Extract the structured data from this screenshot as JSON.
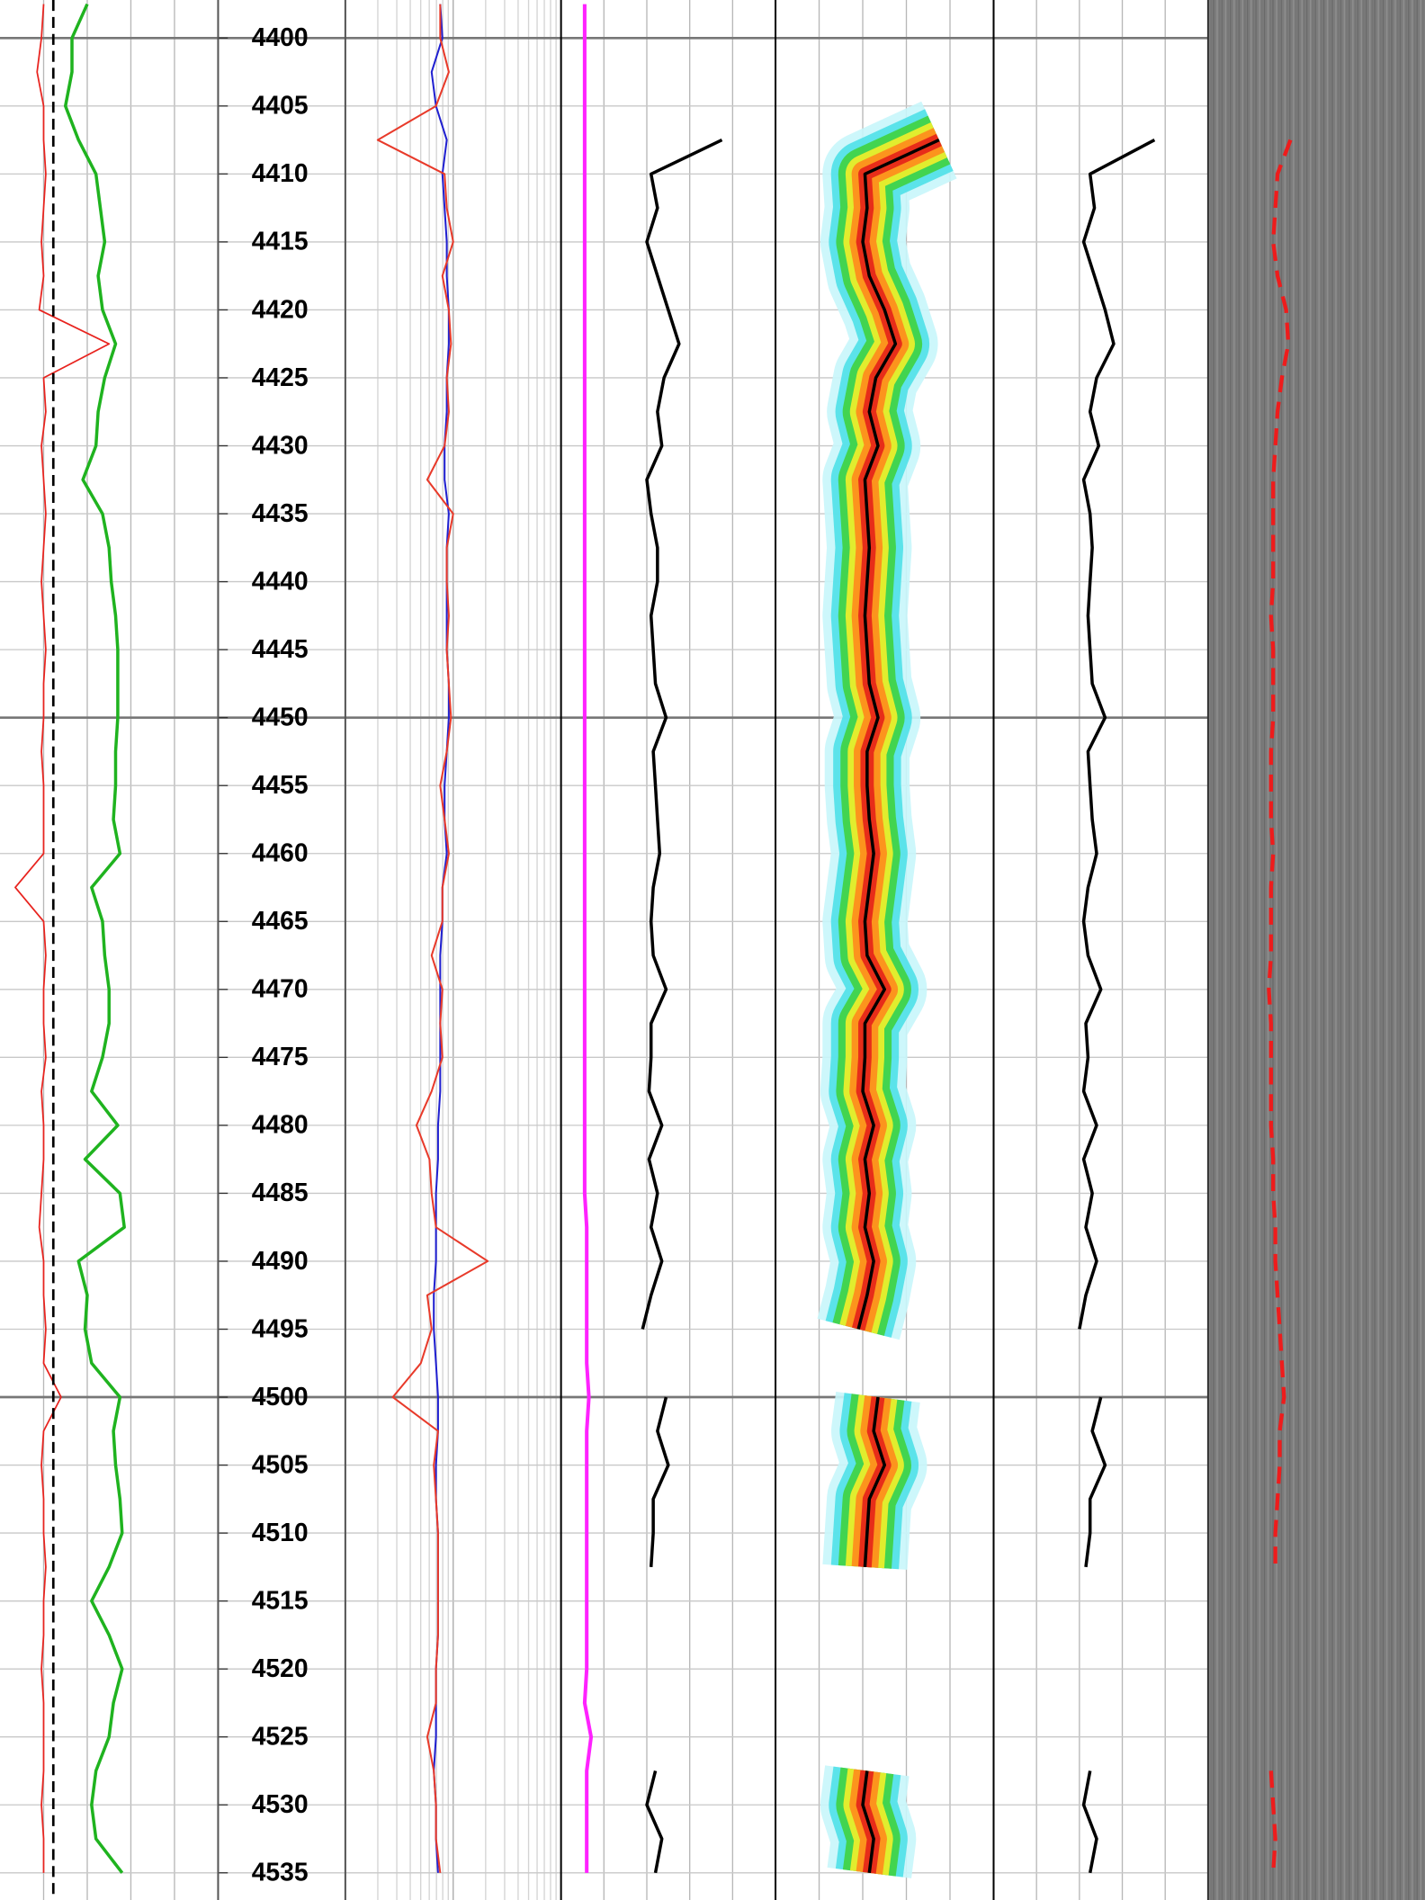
{
  "chart_data": {
    "type": "well-log",
    "ylim": [
      4397.2,
      4537.0
    ],
    "yticks": [
      4400,
      4405,
      4410,
      4415,
      4420,
      4425,
      4430,
      4435,
      4440,
      4445,
      4450,
      4455,
      4460,
      4465,
      4470,
      4475,
      4480,
      4485,
      4490,
      4495,
      4500,
      4505,
      4510,
      4515,
      4520,
      4525,
      4530,
      4535
    ],
    "grid": true,
    "depth": [
      4397.5,
      4400,
      4402.5,
      4405,
      4407.5,
      4410,
      4412.5,
      4415,
      4417.5,
      4420,
      4422.5,
      4425,
      4427.5,
      4430,
      4432.5,
      4435,
      4437.5,
      4440,
      4442.5,
      4445,
      4447.5,
      4450,
      4452.5,
      4455,
      4457.5,
      4460,
      4462.5,
      4465,
      4467.5,
      4470,
      4472.5,
      4475,
      4477.5,
      4480,
      4482.5,
      4485,
      4487.5,
      4490,
      4492.5,
      4495,
      4497.5,
      4500,
      4502.5,
      4505,
      4507.5,
      4510,
      4512.5,
      4515,
      4517.5,
      4520,
      4522.5,
      4525,
      4527.5,
      4530,
      4532.5,
      4535
    ],
    "tracks": [
      {
        "xlim": [
          0,
          1
        ],
        "series": [
          {
            "color": "#e8231e",
            "width": 1.3,
            "values": [
              0.2,
              0.19,
              0.17,
              0.2,
              0.2,
              0.21,
              0.2,
              0.19,
              0.2,
              0.18,
              0.5,
              0.2,
              0.21,
              0.19,
              0.2,
              0.21,
              0.2,
              0.19,
              0.2,
              0.21,
              0.2,
              0.2,
              0.19,
              0.2,
              0.2,
              0.2,
              0.07,
              0.2,
              0.21,
              0.2,
              0.2,
              0.21,
              0.19,
              0.2,
              0.2,
              0.19,
              0.18,
              0.2,
              0.2,
              0.21,
              0.2,
              0.28,
              0.2,
              0.19,
              0.2,
              0.2,
              0.21,
              0.2,
              0.2,
              0.19,
              0.2,
              0.2,
              0.2,
              0.19,
              0.2,
              0.2
            ]
          },
          {
            "color": "#1fb31f",
            "width": 2.6,
            "values": [
              0.4,
              0.33,
              0.33,
              0.3,
              0.36,
              0.44,
              0.46,
              0.48,
              0.45,
              0.47,
              0.53,
              0.48,
              0.45,
              0.44,
              0.38,
              0.47,
              0.5,
              0.51,
              0.53,
              0.54,
              0.54,
              0.54,
              0.53,
              0.53,
              0.52,
              0.55,
              0.42,
              0.47,
              0.48,
              0.5,
              0.5,
              0.47,
              0.42,
              0.54,
              0.39,
              0.55,
              0.57,
              0.36,
              0.4,
              0.39,
              0.42,
              0.55,
              0.52,
              0.53,
              0.55,
              0.56,
              0.5,
              0.42,
              0.5,
              0.56,
              0.52,
              0.5,
              0.44,
              0.42,
              0.44,
              0.56
            ]
          }
        ]
      },
      {
        "xlim": [
          0,
          1
        ],
        "log": true,
        "series": [
          {
            "color": "#2020d0",
            "width": 1.5,
            "values": [
              0.44,
              0.45,
              0.4,
              0.42,
              0.47,
              0.45,
              0.46,
              0.47,
              0.47,
              0.48,
              0.48,
              0.47,
              0.47,
              0.46,
              0.46,
              0.48,
              0.47,
              0.47,
              0.47,
              0.47,
              0.48,
              0.48,
              0.47,
              0.46,
              0.46,
              0.47,
              0.45,
              0.45,
              0.44,
              0.44,
              0.44,
              0.44,
              0.44,
              0.43,
              0.43,
              0.42,
              0.42,
              0.42,
              0.41,
              0.41,
              0.42,
              0.43,
              0.43,
              0.42,
              0.42,
              0.43,
              0.43,
              0.43,
              0.43,
              0.42,
              0.42,
              0.42,
              0.41,
              0.42,
              0.42,
              0.43
            ]
          },
          {
            "color": "#e83a2a",
            "width": 1.5,
            "values": [
              0.44,
              0.44,
              0.48,
              0.42,
              0.15,
              0.46,
              0.47,
              0.5,
              0.45,
              0.48,
              0.49,
              0.47,
              0.48,
              0.46,
              0.38,
              0.5,
              0.47,
              0.47,
              0.48,
              0.47,
              0.48,
              0.49,
              0.47,
              0.44,
              0.46,
              0.48,
              0.45,
              0.45,
              0.4,
              0.45,
              0.44,
              0.45,
              0.4,
              0.33,
              0.39,
              0.4,
              0.42,
              0.66,
              0.38,
              0.4,
              0.35,
              0.22,
              0.43,
              0.41,
              0.42,
              0.43,
              0.43,
              0.43,
              0.43,
              0.42,
              0.42,
              0.38,
              0.41,
              0.42,
              0.42,
              0.44
            ]
          }
        ]
      },
      {
        "xlim": [
          0,
          1
        ],
        "series": [
          {
            "color": "#ff22ff",
            "width": 3,
            "values": [
              0.11,
              0.11,
              0.11,
              0.11,
              0.11,
              0.11,
              0.11,
              0.11,
              0.11,
              0.11,
              0.11,
              0.11,
              0.11,
              0.11,
              0.11,
              0.11,
              0.11,
              0.11,
              0.11,
              0.11,
              0.11,
              0.11,
              0.11,
              0.11,
              0.11,
              0.11,
              0.11,
              0.11,
              0.11,
              0.11,
              0.11,
              0.11,
              0.11,
              0.11,
              0.11,
              0.11,
              0.12,
              0.12,
              0.12,
              0.12,
              0.12,
              0.13,
              0.12,
              0.12,
              0.12,
              0.12,
              0.12,
              0.12,
              0.12,
              0.12,
              0.11,
              0.14,
              0.12,
              0.12,
              0.12,
              0.12
            ]
          },
          {
            "color": "#000000",
            "width": 2.6,
            "values": [
              0.44,
              null,
              null,
              null,
              0.75,
              0.42,
              0.45,
              0.4,
              0.45,
              0.5,
              0.55,
              0.48,
              0.45,
              0.47,
              0.4,
              0.42,
              0.45,
              0.45,
              0.42,
              0.43,
              0.44,
              0.49,
              0.43,
              0.44,
              0.45,
              0.46,
              0.43,
              0.42,
              0.43,
              0.49,
              0.42,
              0.42,
              0.41,
              0.47,
              0.41,
              0.45,
              0.42,
              0.47,
              0.42,
              0.38,
              null,
              0.49,
              0.45,
              0.5,
              0.43,
              0.43,
              0.42,
              null,
              null,
              null,
              null,
              null,
              0.44,
              0.4,
              0.47,
              0.44
            ]
          }
        ]
      },
      {
        "xlim": [
          0,
          1
        ],
        "heat": true,
        "series": [
          {
            "color": "#000000",
            "width": 2.6,
            "values": [
              0.43,
              null,
              null,
              null,
              0.75,
              0.41,
              0.42,
              0.4,
              0.43,
              0.5,
              0.55,
              0.46,
              0.43,
              0.47,
              0.41,
              0.42,
              0.43,
              0.42,
              0.41,
              0.42,
              0.43,
              0.47,
              0.42,
              0.42,
              0.43,
              0.45,
              0.43,
              0.41,
              0.42,
              0.5,
              0.41,
              0.41,
              0.4,
              0.45,
              0.41,
              0.43,
              0.41,
              0.45,
              0.42,
              0.38,
              null,
              0.47,
              0.45,
              0.5,
              0.43,
              0.42,
              0.41,
              null,
              null,
              null,
              null,
              null,
              0.42,
              0.4,
              0.45,
              0.43
            ]
          }
        ]
      },
      {
        "xlim": [
          0,
          1
        ],
        "series": [
          {
            "color": "#000000",
            "width": 2.6,
            "values": [
              0.47,
              null,
              null,
              null,
              0.75,
              0.45,
              0.47,
              0.42,
              0.47,
              0.52,
              0.56,
              0.48,
              0.45,
              0.49,
              0.42,
              0.45,
              0.46,
              0.45,
              0.44,
              0.45,
              0.46,
              0.52,
              0.44,
              0.45,
              0.46,
              0.48,
              0.44,
              0.42,
              0.44,
              0.5,
              0.43,
              0.44,
              0.42,
              0.48,
              0.42,
              0.46,
              0.43,
              0.48,
              0.43,
              0.4,
              null,
              0.5,
              0.46,
              0.52,
              0.45,
              0.45,
              0.43,
              null,
              null,
              null,
              null,
              null,
              0.45,
              0.42,
              0.48,
              0.45
            ]
          }
        ]
      },
      {
        "xlim": [
          0,
          1
        ],
        "series": [
          {
            "color": "#ee1c1c",
            "width": 3.2,
            "dashed": true,
            "values": [
              0.31,
              null,
              null,
              null,
              0.38,
              0.32,
              0.31,
              0.3,
              0.32,
              0.36,
              0.37,
              0.34,
              0.32,
              0.31,
              0.3,
              0.3,
              0.3,
              0.3,
              0.29,
              0.3,
              0.3,
              0.3,
              0.29,
              0.29,
              0.29,
              0.3,
              0.29,
              0.29,
              0.29,
              0.28,
              0.29,
              0.29,
              0.29,
              0.29,
              0.3,
              0.3,
              0.31,
              0.31,
              0.32,
              0.33,
              0.34,
              0.35,
              0.33,
              0.33,
              0.32,
              0.31,
              0.31,
              null,
              null,
              null,
              null,
              null,
              0.29,
              0.3,
              0.31,
              0.3
            ]
          }
        ]
      }
    ]
  }
}
